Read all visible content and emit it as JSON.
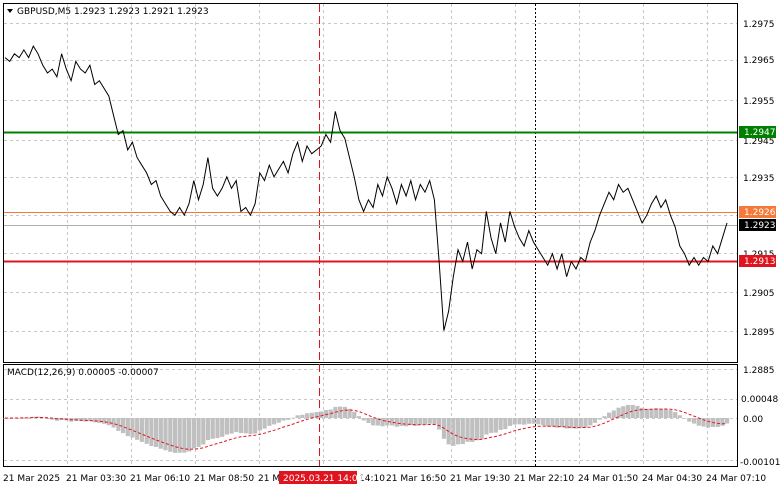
{
  "header": {
    "symbol_info": "GBPUSD,M5  1.2923 1.2923 1.2921 1.2923"
  },
  "macd_header": {
    "label": "MACD(12,26,9) 0.00005 -0.00007"
  },
  "levels": {
    "green": {
      "value": "1.2947",
      "color": "#008000"
    },
    "orange": {
      "value": "1.2926",
      "color": "#f47a3a"
    },
    "current": {
      "value": "1.2923",
      "color": "#000000"
    },
    "red": {
      "value": "1.2913",
      "color": "#e0141e"
    }
  },
  "price_axis": [
    "1.2975",
    "1.2965",
    "1.2955",
    "1.2945",
    "1.2935",
    "1.2915",
    "1.2905",
    "1.2895",
    "1.2885"
  ],
  "macd_axis": [
    "0.00048",
    "0.00",
    "-0.00101"
  ],
  "time_axis": [
    "21 Mar 2025",
    "21 Mar 03:30",
    "21 Mar 06:10",
    "21 Mar 08:50",
    "21 Mar",
    "14:10",
    "21 Mar 16:50",
    "21 Mar 19:30",
    "21 Mar 22:10",
    "24 Mar 01:50",
    "24 Mar 04:30",
    "24 Mar 07:10"
  ],
  "time_marker": {
    "label": "2025.03.21 14:00",
    "color": "#e0141e"
  },
  "chart_data": {
    "type": "line",
    "symbol": "GBPUSD",
    "timeframe": "M5",
    "ylim": [
      1.288,
      1.298
    ],
    "series": [
      {
        "values": [
          1.2966,
          1.2965,
          1.2967,
          1.2966,
          1.2968,
          1.2966,
          1.2969,
          1.2967,
          1.2964,
          1.2962,
          1.2963,
          1.2961,
          1.2967,
          1.2963,
          1.296,
          1.2965,
          1.2963,
          1.2962,
          1.2964,
          1.2959,
          1.296,
          1.2958,
          1.2956,
          1.2951,
          1.2946,
          1.2947,
          1.2942,
          1.2944,
          1.294,
          1.2938,
          1.2936,
          1.2933,
          1.2934,
          1.293,
          1.2928,
          1.2926,
          1.2925,
          1.2927,
          1.2925,
          1.2928,
          1.2934,
          1.2929,
          1.2933,
          1.294,
          1.2932,
          1.293,
          1.2932,
          1.2935,
          1.2932,
          1.2934,
          1.2926,
          1.2927,
          1.2925,
          1.2928,
          1.2936,
          1.2934,
          1.2938,
          1.2935,
          1.2937,
          1.2939,
          1.2936,
          1.2941,
          1.2944,
          1.2939,
          1.2943,
          1.2941,
          1.2942,
          1.2943,
          1.2946,
          1.2944,
          1.2952,
          1.2947,
          1.2945,
          1.294,
          1.2935,
          1.2929,
          1.2926,
          1.2929,
          1.2927,
          1.2933,
          1.293,
          1.2935,
          1.2932,
          1.2928,
          1.2933,
          1.293,
          1.2934,
          1.2929,
          1.2933,
          1.2931,
          1.2934,
          1.2929,
          1.2913,
          1.2895,
          1.29,
          1.2909,
          1.2916,
          1.2913,
          1.2918,
          1.2911,
          1.2916,
          1.2915,
          1.2926,
          1.2919,
          1.2915,
          1.2923,
          1.2918,
          1.2926,
          1.2922,
          1.2919,
          1.2917,
          1.2921,
          1.2918,
          1.2916,
          1.2914,
          1.2912,
          1.2915,
          1.2911,
          1.2915,
          1.2909,
          1.2913,
          1.2911,
          1.2914,
          1.2913,
          1.2918,
          1.2921,
          1.2925,
          1.2928,
          1.2931,
          1.2929,
          1.2933,
          1.2931,
          1.2932,
          1.2929,
          1.2926,
          1.2923,
          1.2925,
          1.2928,
          1.293,
          1.2927,
          1.2929,
          1.2925,
          1.2922,
          1.2917,
          1.2915,
          1.2912,
          1.2914,
          1.2912,
          1.2914,
          1.2913,
          1.2917,
          1.2915,
          1.2919,
          1.2923
        ]
      }
    ]
  }
}
